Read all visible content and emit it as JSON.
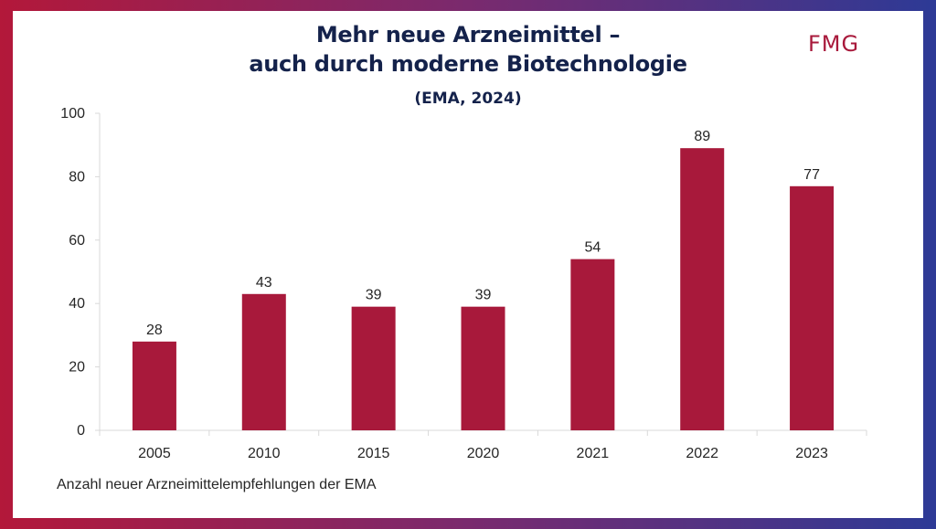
{
  "colors": {
    "bar": "#a8193b",
    "title": "#14224b",
    "axis": "#d9d9d9",
    "text": "#262626"
  },
  "logo": "FMG",
  "chart_data": {
    "type": "bar",
    "title_line1": "Mehr neue Arzneimittel –",
    "title_line2": "auch durch moderne Biotechnologie",
    "subtitle": "(EMA, 2024)",
    "caption": "Anzahl neuer Arzneimittelempfehlungen der EMA",
    "categories": [
      "2005",
      "2010",
      "2015",
      "2020",
      "2021",
      "2022",
      "2023"
    ],
    "values": [
      28,
      43,
      39,
      39,
      54,
      89,
      77
    ],
    "ylim": [
      0,
      100
    ],
    "yticks": [
      0,
      20,
      40,
      60,
      80,
      100
    ],
    "xlabel": "",
    "ylabel": "",
    "grid": false,
    "legend": "none"
  }
}
